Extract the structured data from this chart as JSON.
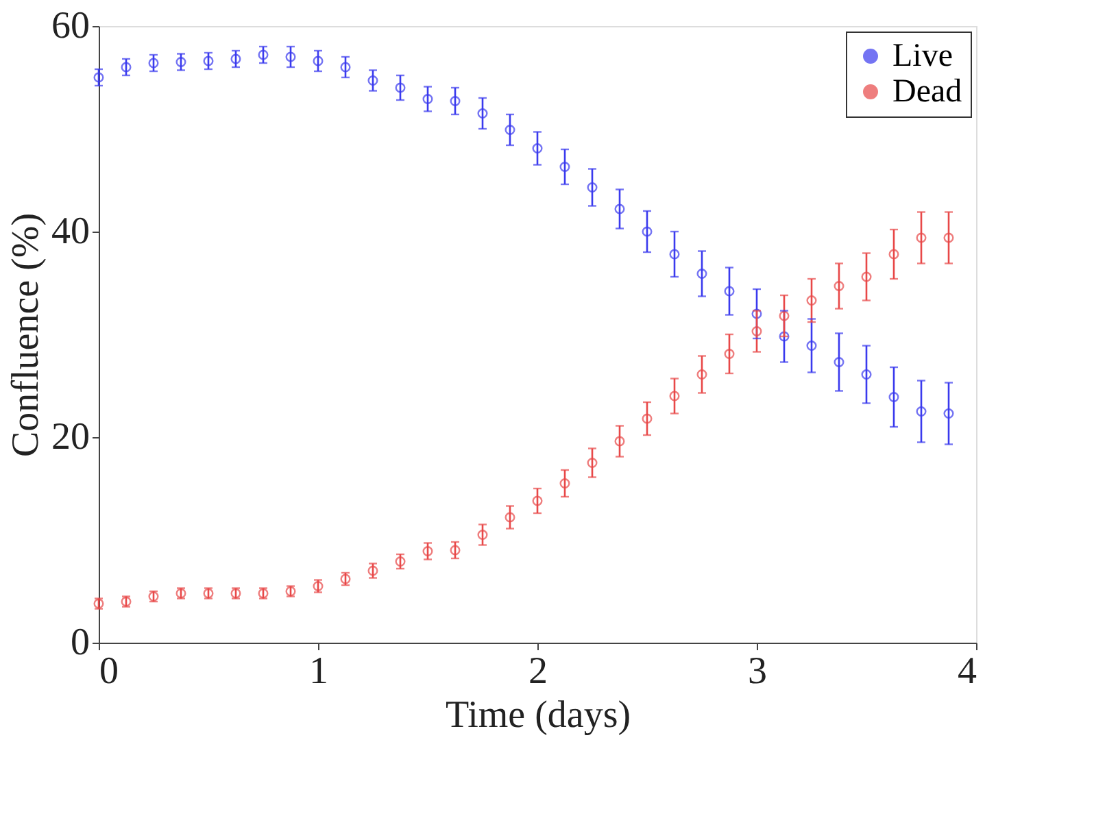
{
  "chart_data": {
    "type": "scatter",
    "xlabel": "Time (days)",
    "ylabel": "Confluence (%)",
    "x": [
      0,
      0.125,
      0.25,
      0.375,
      0.5,
      0.625,
      0.75,
      0.875,
      1,
      1.125,
      1.25,
      1.375,
      1.5,
      1.625,
      1.75,
      1.875,
      2,
      2.125,
      2.25,
      2.375,
      2.5,
      2.625,
      2.75,
      2.875,
      3,
      3.125,
      3.25,
      3.375,
      3.5,
      3.625,
      3.75,
      3.875
    ],
    "series": [
      {
        "name": "Live",
        "color": "#3a3aee",
        "values": [
          55,
          56,
          56.4,
          56.5,
          56.6,
          56.8,
          57.2,
          57,
          56.6,
          56,
          54.7,
          54,
          52.9,
          52.7,
          51.5,
          49.9,
          48.1,
          46.3,
          44.3,
          42.2,
          40,
          37.8,
          35.9,
          34.2,
          32,
          29.8,
          28.9,
          27.3,
          26.1,
          23.9,
          22.5,
          22.3
        ],
        "errors": [
          0.8,
          0.8,
          0.8,
          0.8,
          0.8,
          0.8,
          0.8,
          1,
          1,
          1,
          1,
          1.2,
          1.2,
          1.3,
          1.5,
          1.5,
          1.6,
          1.7,
          1.8,
          1.9,
          2,
          2.2,
          2.2,
          2.3,
          2.4,
          2.5,
          2.6,
          2.8,
          2.8,
          2.9,
          3,
          3
        ]
      },
      {
        "name": "Dead",
        "color": "#e84848",
        "values": [
          3.8,
          4,
          4.5,
          4.8,
          4.8,
          4.8,
          4.8,
          5,
          5.5,
          6.2,
          7,
          7.9,
          8.9,
          9,
          10.5,
          12.2,
          13.8,
          15.5,
          17.5,
          19.6,
          21.8,
          24,
          26.1,
          28.1,
          30.3,
          31.8,
          33.3,
          34.7,
          35.6,
          37.8,
          39.4,
          39.4
        ],
        "errors": [
          0.5,
          0.5,
          0.5,
          0.5,
          0.5,
          0.5,
          0.5,
          0.5,
          0.6,
          0.6,
          0.7,
          0.7,
          0.8,
          0.8,
          1,
          1.1,
          1.2,
          1.3,
          1.4,
          1.5,
          1.6,
          1.7,
          1.8,
          1.9,
          2,
          2,
          2.1,
          2.2,
          2.3,
          2.4,
          2.5,
          2.5
        ]
      }
    ],
    "xlim": [
      0,
      4
    ],
    "xticks": [
      0,
      1,
      2,
      3,
      4
    ],
    "ylim": [
      0,
      60
    ],
    "yticks": [
      0,
      20,
      40,
      60
    ],
    "grid": false,
    "legend": "top right",
    "marker": "circle"
  }
}
